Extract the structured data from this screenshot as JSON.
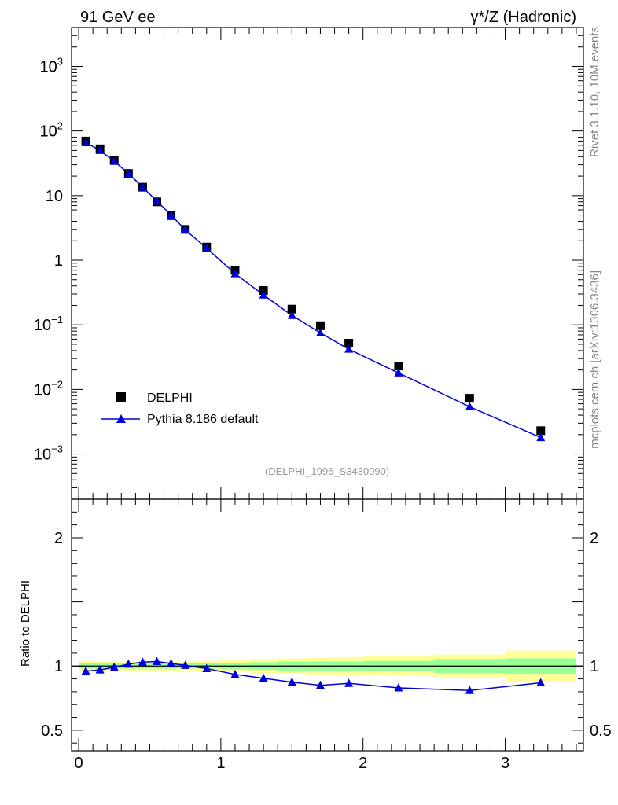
{
  "header": {
    "left_title": "91 GeV ee",
    "right_title": "γ*/Z (Hadronic)"
  },
  "side_labels": {
    "rivet": "Rivet 3.1.10,  10M events",
    "mcplots": "mcplots.cern.ch [arXiv:1306.3436]"
  },
  "analysis_label": "(DELPHI_1996_S3430090)",
  "colors": {
    "data": "#000000",
    "mc": "#0000dd",
    "band_inner": "#99ff99",
    "band_outer": "#ffff99"
  },
  "chart_data": [
    {
      "type": "scatter",
      "panel": "main",
      "yscale": "log",
      "xlim": [
        -0.05,
        3.55
      ],
      "ylim": [
        0.0002,
        4000
      ],
      "y_ticks": [
        {
          "value": 1000,
          "label": "10",
          "exp": "3"
        },
        {
          "value": 100,
          "label": "10",
          "exp": "2"
        },
        {
          "value": 10,
          "label": "10",
          "exp": ""
        },
        {
          "value": 1,
          "label": "1",
          "exp": ""
        },
        {
          "value": 0.1,
          "label": "10",
          "exp": "−1"
        },
        {
          "value": 0.01,
          "label": "10",
          "exp": "−2"
        },
        {
          "value": 0.001,
          "label": "10",
          "exp": "−3"
        }
      ],
      "legend_position": "bottom-left",
      "series": [
        {
          "name": "DELPHI",
          "style": "markers",
          "marker": "square",
          "x": [
            0.05,
            0.15,
            0.25,
            0.35,
            0.45,
            0.55,
            0.65,
            0.75,
            0.9,
            1.1,
            1.3,
            1.5,
            1.7,
            1.9,
            2.25,
            2.75,
            3.25
          ],
          "y": [
            70,
            53,
            35,
            22,
            13.5,
            8.0,
            4.9,
            3.0,
            1.6,
            0.7,
            0.34,
            0.175,
            0.097,
            0.052,
            0.023,
            0.0073,
            0.0023
          ]
        },
        {
          "name": "Pythia 8.186 default",
          "style": "line+markers",
          "marker": "triangle",
          "x": [
            0.05,
            0.15,
            0.25,
            0.35,
            0.45,
            0.55,
            0.65,
            0.75,
            0.9,
            1.1,
            1.3,
            1.5,
            1.7,
            1.9,
            2.25,
            2.75,
            3.25
          ],
          "y": [
            66,
            50,
            34,
            22,
            13.5,
            8.2,
            5.0,
            2.95,
            1.53,
            0.62,
            0.29,
            0.14,
            0.075,
            0.042,
            0.018,
            0.0054,
            0.0018
          ]
        }
      ]
    },
    {
      "type": "line",
      "panel": "ratio",
      "ylabel": "Ratio to DELPHI",
      "xlim": [
        -0.05,
        3.55
      ],
      "ylim": [
        0.34,
        2.3
      ],
      "y_ticks": [
        {
          "value": 2,
          "label": "2"
        },
        {
          "value": 1,
          "label": "1"
        },
        {
          "value": 0.5,
          "label": "0.5"
        }
      ],
      "x_ticks": [
        {
          "value": 0,
          "label": "0"
        },
        {
          "value": 1,
          "label": "1"
        },
        {
          "value": 2,
          "label": "2"
        },
        {
          "value": 3,
          "label": "3"
        }
      ],
      "reference_line": 1.0,
      "bands": {
        "edges": [
          0.0,
          0.1,
          0.2,
          0.3,
          0.4,
          0.5,
          0.6,
          0.7,
          0.8,
          1.0,
          1.2,
          1.4,
          1.6,
          1.8,
          2.0,
          2.5,
          3.0,
          3.5
        ],
        "inner_half_width": [
          0.02,
          0.02,
          0.02,
          0.02,
          0.02,
          0.02,
          0.02,
          0.02,
          0.02,
          0.025,
          0.03,
          0.035,
          0.035,
          0.035,
          0.04,
          0.055,
          0.06
        ],
        "outer_half_width": [
          0.04,
          0.035,
          0.035,
          0.035,
          0.035,
          0.035,
          0.035,
          0.035,
          0.04,
          0.045,
          0.055,
          0.06,
          0.065,
          0.07,
          0.075,
          0.09,
          0.12
        ]
      },
      "series": [
        {
          "name": "Pythia 8.186 default",
          "x": [
            0.05,
            0.15,
            0.25,
            0.35,
            0.45,
            0.55,
            0.65,
            0.75,
            0.9,
            1.1,
            1.3,
            1.5,
            1.7,
            1.9,
            2.25,
            2.75,
            3.25
          ],
          "y": [
            0.96,
            0.97,
            0.99,
            1.015,
            1.03,
            1.035,
            1.02,
            1.005,
            0.98,
            0.935,
            0.905,
            0.875,
            0.85,
            0.865,
            0.83,
            0.81,
            0.87
          ]
        }
      ]
    }
  ]
}
